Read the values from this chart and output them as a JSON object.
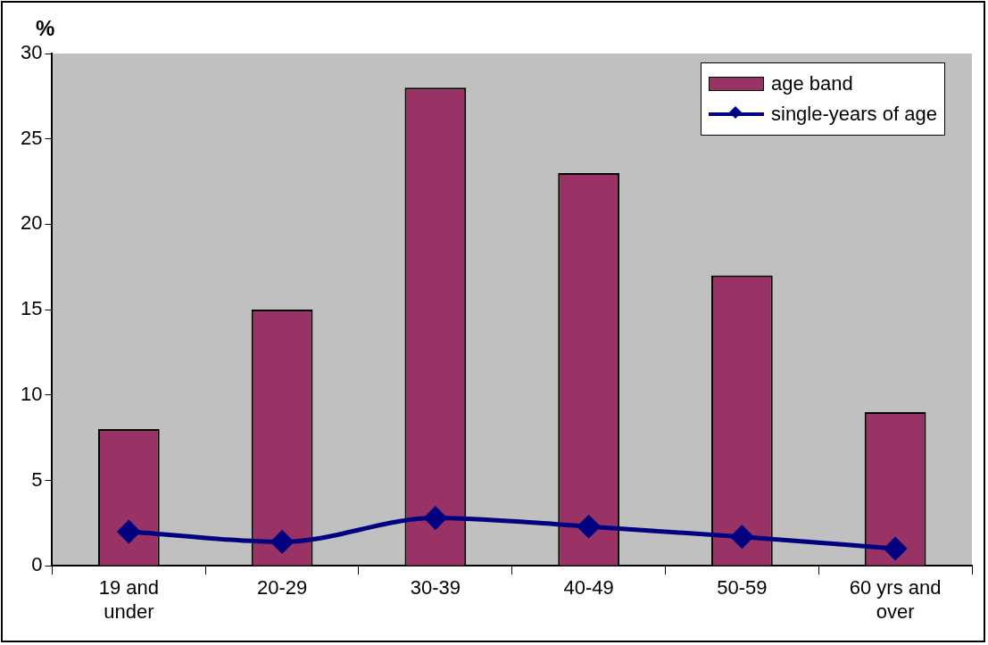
{
  "chart_data": {
    "type": "bar",
    "ylabel": "%",
    "categories": [
      "19 and under",
      "20-29",
      "30-39",
      "40-49",
      "50-59",
      "60 yrs and over"
    ],
    "series": [
      {
        "name": "age band",
        "color": "#993366",
        "values": [
          8,
          15,
          28,
          23,
          17,
          9
        ]
      },
      {
        "name": "single-years of age",
        "type": "line",
        "color": "#000080",
        "values": [
          2.0,
          1.4,
          2.8,
          2.3,
          1.7,
          1.0
        ]
      }
    ],
    "ylim": [
      0,
      30
    ],
    "yticks": [
      0,
      5,
      10,
      15,
      20,
      25,
      30
    ],
    "grid": false,
    "legend": "top right",
    "marker": "diamond",
    "line_style": "solid"
  }
}
